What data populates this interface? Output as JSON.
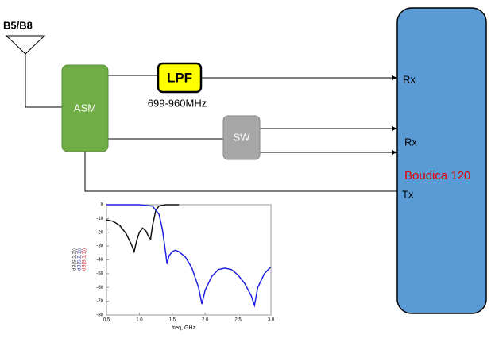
{
  "antenna": {
    "label": "B5/B8"
  },
  "blocks": {
    "asm": "ASM",
    "lpf": "LPF",
    "lpf_note": "699-960MHz",
    "sw": "SW",
    "transceiver": "Boudica 120"
  },
  "ports": [
    "Rx",
    "Rx",
    "Tx"
  ],
  "chart_data": {
    "type": "line",
    "x_label": "freq, GHz",
    "y_labels": [
      {
        "text": "dB(S(2,2))",
        "color": "#333333"
      },
      {
        "text": "dB(S(2,1))",
        "color": "#3333aa"
      },
      {
        "text": "dB(S(1,1))",
        "color": "#cc2222"
      }
    ],
    "xlim": [
      0.5,
      3.0
    ],
    "xticks": [
      0.5,
      {
        "value": 1,
        "label": "1.0"
      },
      1.5,
      {
        "value": 2,
        "label": "2.0"
      },
      2.5,
      {
        "value": 3,
        "label": "3.0"
      }
    ],
    "ylim": [
      -80,
      0
    ],
    "yticks": [
      0,
      -10,
      -20,
      -30,
      -40,
      -50,
      -60,
      -70,
      -80
    ],
    "series": [
      {
        "color": "#111111",
        "x": [
          0.5,
          0.6,
          0.7,
          0.8,
          0.88,
          0.92,
          0.96,
          1.0,
          1.05,
          1.1,
          1.15,
          1.17,
          1.2,
          1.25,
          1.3,
          1.4,
          1.6
        ],
        "values": [
          -11,
          -12,
          -15,
          -21,
          -29,
          -34,
          -26,
          -20,
          -17,
          -19,
          -24,
          -25,
          -15,
          -4,
          -1,
          0,
          0
        ]
      },
      {
        "color": "#1f1fe0",
        "x": [
          0.5,
          1.0,
          1.2,
          1.3,
          1.35,
          1.4,
          1.42,
          1.45,
          1.5,
          1.55,
          1.6,
          1.7,
          1.8,
          1.9,
          1.95,
          2.0,
          2.1,
          2.2,
          2.3,
          2.4,
          2.5,
          2.6,
          2.7,
          2.75,
          2.8,
          2.9,
          3.0
        ],
        "values": [
          0,
          0,
          -1,
          -7,
          -18,
          -35,
          -43,
          -37,
          -34,
          -33,
          -34,
          -38,
          -46,
          -60,
          -72,
          -62,
          -52,
          -47,
          -46,
          -47,
          -51,
          -57,
          -66,
          -73,
          -60,
          -50,
          -45
        ]
      }
    ]
  }
}
